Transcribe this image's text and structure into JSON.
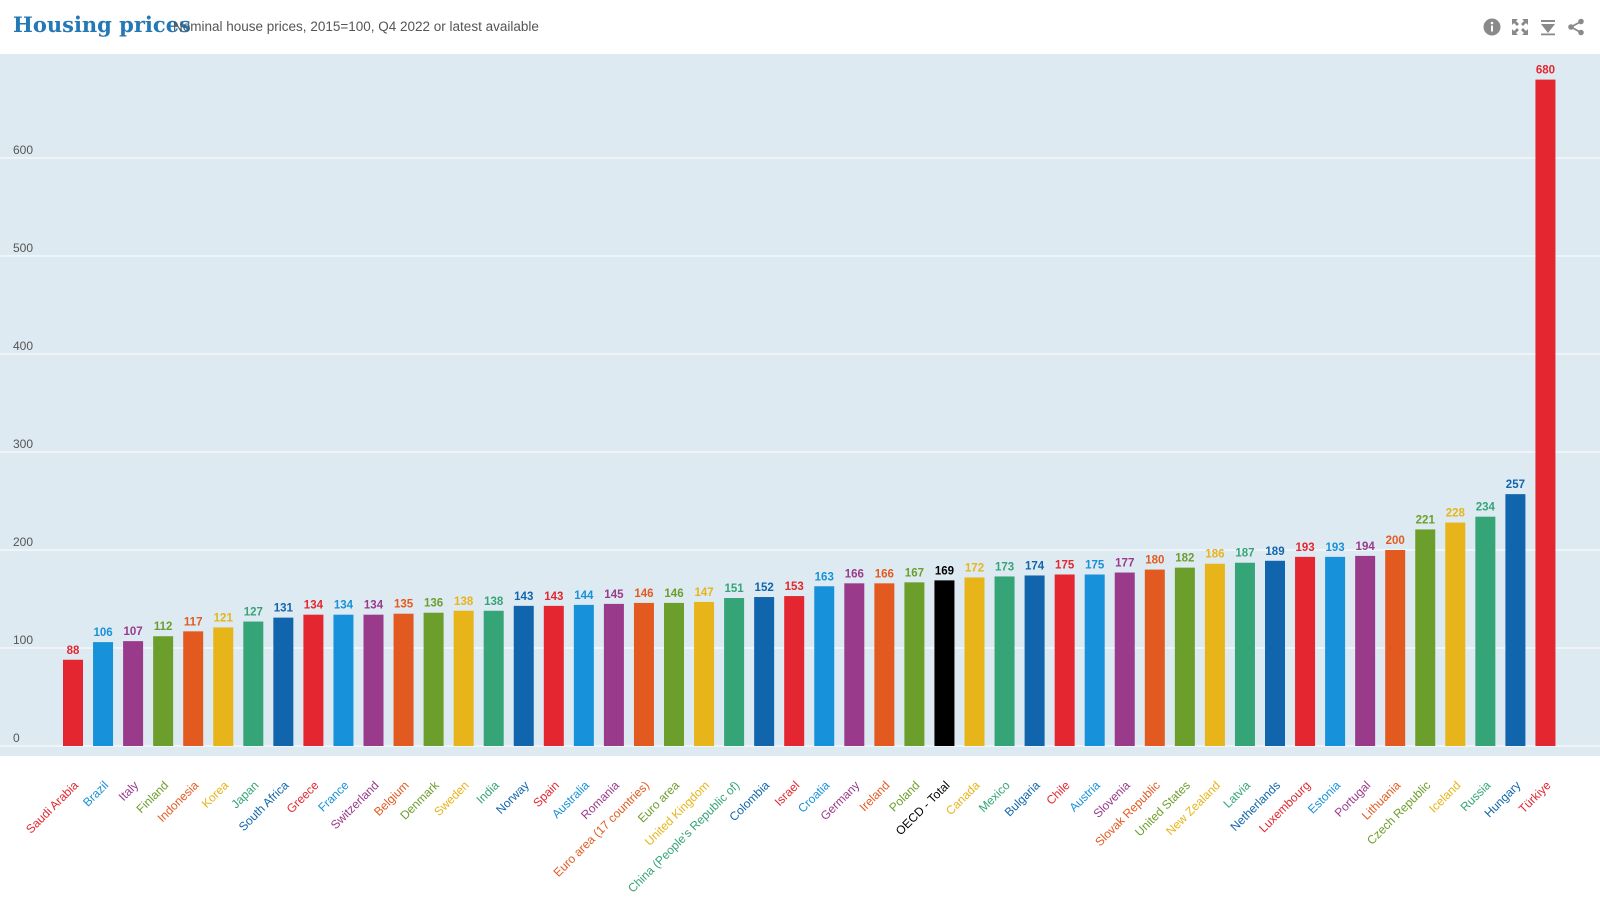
{
  "header": {
    "title": "Housing prices",
    "subtitle": "Nominal house prices, 2015=100, Q4 2022 or latest available"
  },
  "toolbar": {
    "icons": [
      "info-icon",
      "fullscreen-icon",
      "download-icon",
      "share-icon"
    ]
  },
  "colors": {
    "plot_background": "#deeaf1",
    "gridline": "#ffffff",
    "axis_text": "#555555",
    "highlight": "#000000"
  },
  "chart_data": {
    "type": "bar",
    "title": "Housing prices",
    "subtitle": "Nominal house prices, 2015=100, Q4 2022 or latest available",
    "xlabel": "",
    "ylabel": "",
    "ylim": [
      0,
      700
    ],
    "yticks": [
      0,
      100,
      200,
      300,
      400,
      500,
      600
    ],
    "grid": true,
    "legend": "none",
    "highlighted_category": "OECD - Total",
    "categories": [
      "Saudi Arabia",
      "Brazil",
      "Italy",
      "Finland",
      "Indonesia",
      "Korea",
      "Japan",
      "South Africa",
      "Greece",
      "France",
      "Switzerland",
      "Belgium",
      "Denmark",
      "Sweden",
      "India",
      "Norway",
      "Spain",
      "Australia",
      "Romania",
      "Euro area (17 countries)",
      "Euro area",
      "United Kingdom",
      "China (People's Republic of)",
      "Colombia",
      "Israel",
      "Croatia",
      "Germany",
      "Ireland",
      "Poland",
      "OECD - Total",
      "Canada",
      "Mexico",
      "Bulgaria",
      "Chile",
      "Austria",
      "Slovenia",
      "Slovak Republic",
      "United States",
      "New Zealand",
      "Latvia",
      "Netherlands",
      "Luxembourg",
      "Estonia",
      "Portugal",
      "Lithuania",
      "Czech Republic",
      "Iceland",
      "Russia",
      "Hungary",
      "Türkiye"
    ],
    "values": [
      88,
      106,
      107,
      112,
      117,
      121,
      127,
      131,
      134,
      134,
      134,
      135,
      136,
      138,
      138,
      143,
      143,
      144,
      145,
      146,
      146,
      147,
      151,
      152,
      153,
      163,
      166,
      166,
      167,
      169,
      172,
      173,
      174,
      175,
      175,
      177,
      180,
      182,
      186,
      187,
      189,
      193,
      193,
      194,
      200,
      221,
      228,
      234,
      257,
      680
    ],
    "colors": [
      "#e3262f",
      "#1791d9",
      "#993a8b",
      "#6c9e2b",
      "#e35a21",
      "#e7b419",
      "#35a577",
      "#1065ad",
      "#e3262f",
      "#1791d9",
      "#993a8b",
      "#e35a21",
      "#6c9e2b",
      "#e7b419",
      "#35a577",
      "#1065ad",
      "#e3262f",
      "#1791d9",
      "#993a8b",
      "#e35a21",
      "#6c9e2b",
      "#e7b419",
      "#35a577",
      "#1065ad",
      "#e3262f",
      "#1791d9",
      "#993a8b",
      "#e35a21",
      "#6c9e2b",
      "#000000",
      "#e7b419",
      "#35a577",
      "#1065ad",
      "#e3262f",
      "#1791d9",
      "#993a8b",
      "#e35a21",
      "#6c9e2b",
      "#e7b419",
      "#35a577",
      "#1065ad",
      "#e3262f",
      "#1791d9",
      "#993a8b",
      "#e35a21",
      "#6c9e2b",
      "#e7b419",
      "#35a577",
      "#1065ad",
      "#e3262f"
    ]
  }
}
